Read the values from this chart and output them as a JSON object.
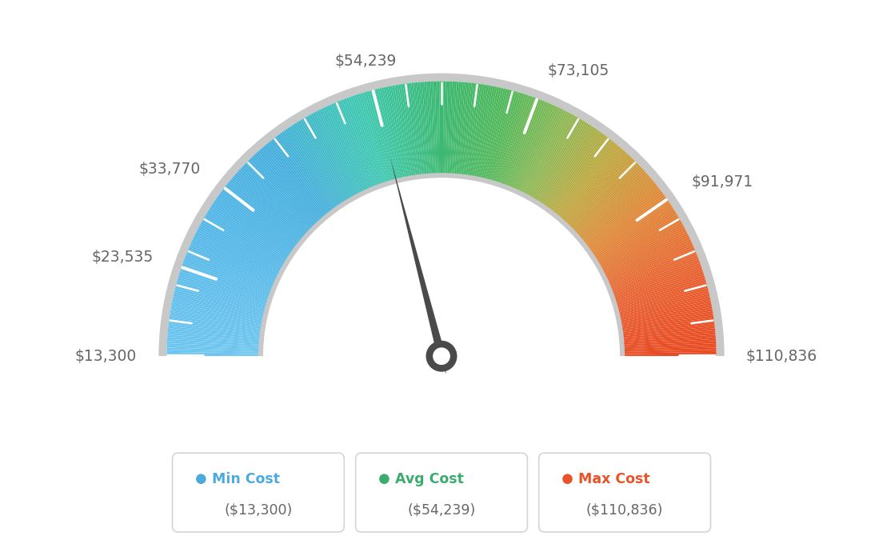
{
  "min_val": 13300,
  "max_val": 110836,
  "avg_val": 54239,
  "tick_labels": [
    "$13,300",
    "$23,535",
    "$33,770",
    "$54,239",
    "$73,105",
    "$91,971",
    "$110,836"
  ],
  "tick_values": [
    13300,
    23535,
    33770,
    54239,
    73105,
    91971,
    110836
  ],
  "legend": [
    {
      "label": "Min Cost",
      "value": "($13,300)",
      "color": "#4DAADF"
    },
    {
      "label": "Avg Cost",
      "value": "($54,239)",
      "color": "#3CAB6E"
    },
    {
      "label": "Max Cost",
      "value": "($110,836)",
      "color": "#E8532A"
    }
  ],
  "color_stops": [
    [
      0.0,
      "#6EC6F0"
    ],
    [
      0.15,
      "#55B8E8"
    ],
    [
      0.28,
      "#45AEDD"
    ],
    [
      0.4,
      "#3EC8B0"
    ],
    [
      0.5,
      "#3CB870"
    ],
    [
      0.58,
      "#52B85A"
    ],
    [
      0.65,
      "#8CB855"
    ],
    [
      0.72,
      "#BFA840"
    ],
    [
      0.8,
      "#E08838"
    ],
    [
      0.9,
      "#E86030"
    ],
    [
      1.0,
      "#E84820"
    ]
  ],
  "background_color": "#FFFFFF",
  "needle_color": "#4A4A4A",
  "label_color": "#666666"
}
